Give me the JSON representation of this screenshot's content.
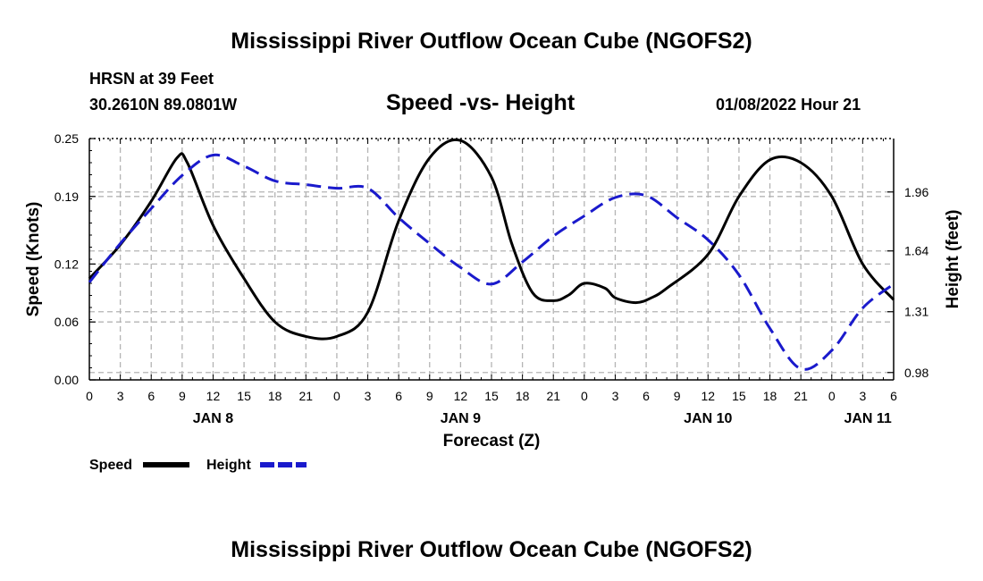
{
  "page": {
    "title": "Mississippi River Outflow Ocean Cube (NGOFS2)",
    "footer_title": "Mississippi River Outflow Ocean Cube (NGOFS2)",
    "station": "HRSN at 39 Feet",
    "coords": "30.2610N  89.0801W",
    "subtitle": "Speed -vs- Height",
    "datetime": "01/08/2022 Hour 21"
  },
  "chart_data": {
    "type": "line",
    "title": "Speed -vs- Height",
    "xlabel": "Forecast (Z)",
    "ylabel": "Speed (Knots)",
    "y2label": "Height (feet)",
    "x_unit": "hours since 2022-01-08 00Z",
    "xlim": [
      0,
      78
    ],
    "ylim": [
      0,
      0.25
    ],
    "y2lim": [
      0.94,
      2.25
    ],
    "x_ticks": [
      0,
      3,
      6,
      9,
      12,
      15,
      18,
      21,
      24,
      27,
      30,
      33,
      36,
      39,
      42,
      45,
      48,
      51,
      54,
      57,
      60,
      63,
      66,
      69,
      72,
      75,
      78
    ],
    "x_tick_labels": [
      "0",
      "3",
      "6",
      "9",
      "12",
      "15",
      "18",
      "21",
      "0",
      "3",
      "6",
      "9",
      "12",
      "15",
      "18",
      "21",
      "0",
      "3",
      "6",
      "9",
      "12",
      "15",
      "18",
      "21",
      "0",
      "3",
      "6"
    ],
    "day_labels": [
      {
        "label": "JAN 8",
        "x": 12
      },
      {
        "label": "JAN 9",
        "x": 36
      },
      {
        "label": "JAN 10",
        "x": 60
      },
      {
        "label": "JAN 11",
        "x": 75.5
      }
    ],
    "y_ticks": [
      0.0,
      0.06,
      0.12,
      0.19,
      0.25
    ],
    "y_tick_labels": [
      "0.00",
      "0.06",
      "0.12",
      "0.19",
      "0.25"
    ],
    "y2_ticks": [
      0.98,
      1.31,
      1.64,
      1.96
    ],
    "y2_tick_labels": [
      "0.98",
      "1.31",
      "1.64",
      "1.96"
    ],
    "legend": [
      {
        "name": "Speed",
        "color": "#000000",
        "dash": "solid"
      },
      {
        "name": "Height",
        "color": "#1a1acc",
        "dash": "dashed"
      }
    ],
    "series": [
      {
        "name": "Speed",
        "axis": "left",
        "color": "#000000",
        "x": [
          0,
          3,
          6,
          8.5,
          9.5,
          12,
          15,
          18,
          21,
          24,
          27,
          30,
          33,
          36,
          39,
          41,
          43,
          45,
          46.5,
          48,
          50,
          51,
          53,
          54.5,
          56,
          60,
          63,
          66,
          69,
          72,
          75,
          78
        ],
        "y": [
          0.105,
          0.14,
          0.185,
          0.23,
          0.225,
          0.16,
          0.105,
          0.06,
          0.045,
          0.045,
          0.07,
          0.165,
          0.23,
          0.248,
          0.21,
          0.14,
          0.09,
          0.082,
          0.088,
          0.1,
          0.095,
          0.085,
          0.08,
          0.085,
          0.095,
          0.13,
          0.19,
          0.228,
          0.225,
          0.19,
          0.12,
          0.083
        ]
      },
      {
        "name": "Height",
        "axis": "right",
        "color": "#1a1acc",
        "x": [
          0,
          3,
          6,
          9,
          12,
          15,
          18,
          21,
          24,
          27,
          30,
          33,
          36,
          39,
          42,
          45,
          48,
          51,
          54,
          57,
          60,
          63,
          66,
          69,
          72,
          75,
          78
        ],
        "y": [
          1.47,
          1.68,
          1.87,
          2.05,
          2.16,
          2.1,
          2.02,
          2.0,
          1.98,
          1.98,
          1.82,
          1.68,
          1.55,
          1.46,
          1.58,
          1.72,
          1.83,
          1.93,
          1.94,
          1.82,
          1.7,
          1.51,
          1.22,
          1.0,
          1.1,
          1.33,
          1.46
        ]
      }
    ]
  }
}
